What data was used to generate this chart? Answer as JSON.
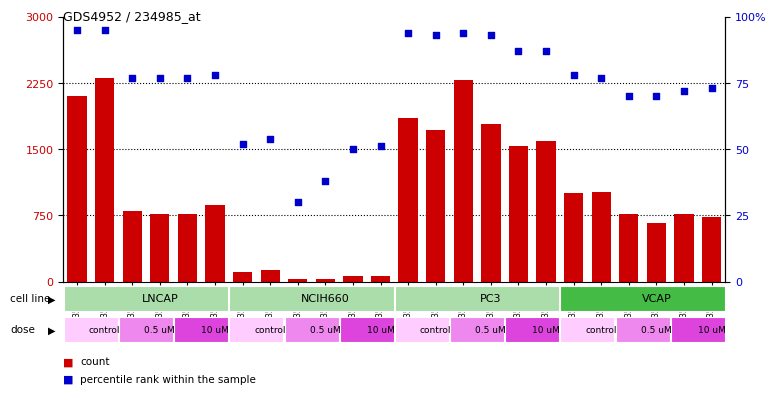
{
  "title": "GDS4952 / 234985_at",
  "samples": [
    "GSM1359772",
    "GSM1359773",
    "GSM1359774",
    "GSM1359775",
    "GSM1359776",
    "GSM1359777",
    "GSM1359760",
    "GSM1359761",
    "GSM1359762",
    "GSM1359763",
    "GSM1359764",
    "GSM1359765",
    "GSM1359778",
    "GSM1359779",
    "GSM1359780",
    "GSM1359781",
    "GSM1359782",
    "GSM1359783",
    "GSM1359766",
    "GSM1359767",
    "GSM1359768",
    "GSM1359769",
    "GSM1359770",
    "GSM1359771"
  ],
  "counts": [
    2100,
    2300,
    800,
    760,
    760,
    870,
    110,
    130,
    30,
    30,
    60,
    60,
    1850,
    1720,
    2280,
    1780,
    1540,
    1590,
    1000,
    1020,
    760,
    660,
    760,
    730
  ],
  "percentiles": [
    95,
    95,
    77,
    77,
    77,
    78,
    52,
    54,
    30,
    38,
    50,
    51,
    94,
    93,
    94,
    93,
    87,
    87,
    78,
    77,
    70,
    70,
    72,
    73
  ],
  "ylim_left": [
    0,
    3000
  ],
  "ylim_right": [
    0,
    100
  ],
  "yticks_left": [
    0,
    750,
    1500,
    2250,
    3000
  ],
  "yticks_right": [
    0,
    25,
    50,
    75,
    100
  ],
  "bar_color": "#cc0000",
  "dot_color": "#0000cc",
  "cell_line_defs": [
    {
      "name": "LNCAP",
      "start": 0,
      "end": 6,
      "color": "#aaddaa"
    },
    {
      "name": "NCIH660",
      "start": 6,
      "end": 12,
      "color": "#aaddaa"
    },
    {
      "name": "PC3",
      "start": 12,
      "end": 18,
      "color": "#aaddaa"
    },
    {
      "name": "VCAP",
      "start": 18,
      "end": 24,
      "color": "#44bb44"
    }
  ],
  "dose_defs": [
    {
      "label": "control",
      "start": 0,
      "end": 2,
      "color": "#ffccff"
    },
    {
      "label": "0.5 uM",
      "start": 2,
      "end": 4,
      "color": "#ee88ee"
    },
    {
      "label": "10 uM",
      "start": 4,
      "end": 6,
      "color": "#dd44dd"
    },
    {
      "label": "control",
      "start": 6,
      "end": 8,
      "color": "#ffccff"
    },
    {
      "label": "0.5 uM",
      "start": 8,
      "end": 10,
      "color": "#ee88ee"
    },
    {
      "label": "10 uM",
      "start": 10,
      "end": 12,
      "color": "#dd44dd"
    },
    {
      "label": "control",
      "start": 12,
      "end": 14,
      "color": "#ffccff"
    },
    {
      "label": "0.5 uM",
      "start": 14,
      "end": 16,
      "color": "#ee88ee"
    },
    {
      "label": "10 uM",
      "start": 16,
      "end": 18,
      "color": "#dd44dd"
    },
    {
      "label": "control",
      "start": 18,
      "end": 20,
      "color": "#ffccff"
    },
    {
      "label": "0.5 uM",
      "start": 20,
      "end": 22,
      "color": "#ee88ee"
    },
    {
      "label": "10 uM",
      "start": 22,
      "end": 24,
      "color": "#dd44dd"
    }
  ],
  "n_samples": 24,
  "grid_color": "#000000",
  "grid_style": "dotted",
  "separator_color": "#888888",
  "label_bg_color": "#d8d8d8",
  "row_label_color": "#000000"
}
